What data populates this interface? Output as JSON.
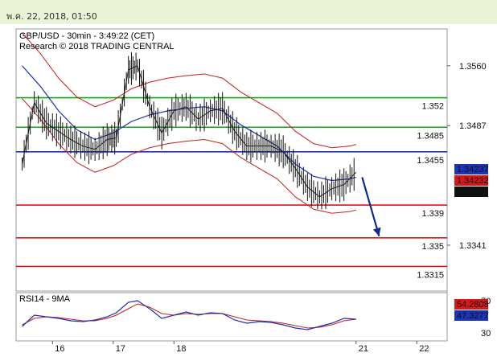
{
  "header": {
    "datestamp": "พ.ค. 22, 2018, 01:50"
  },
  "chart_data": {
    "type": "line",
    "title": "GBP/USD - 30min - 3:49:22 (CET)",
    "subtitle": "Research © 2018 TRADING CENTRAL",
    "x_ticks": [
      {
        "label": "16",
        "x": 16
      },
      {
        "label": "17",
        "x": 17
      },
      {
        "label": "18",
        "x": 18
      },
      {
        "label": "21",
        "x": 21
      },
      {
        "label": "22",
        "x": 22
      }
    ],
    "ylim": [
      1.3285,
      1.3605
    ],
    "y_ticks": [
      "1.3560",
      "1.3487",
      "1.3341"
    ],
    "levels": [
      {
        "label": "1.352",
        "value": 1.3521,
        "color": "#17a21a",
        "kind": "resistance"
      },
      {
        "label": "1.3485",
        "value": 1.3485,
        "color": "#17a21a",
        "kind": "resistance"
      },
      {
        "label": "1.3455",
        "value": 1.3455,
        "color": "#1b2fb0",
        "kind": "pivot"
      },
      {
        "label": "1.339",
        "value": 1.339,
        "color": "#d81818",
        "kind": "support"
      },
      {
        "label": "1.335",
        "value": 1.335,
        "color": "#d81818",
        "kind": "support"
      },
      {
        "label": "1.3315",
        "value": 1.3315,
        "color": "#d81818",
        "kind": "support"
      }
    ],
    "price_labels": [
      {
        "text": "1.34237",
        "bg": "#1b34b8"
      },
      {
        "text": "1.34232",
        "bg": "#d81818"
      },
      {
        "text": "1.3423",
        "bg": "#111111"
      }
    ],
    "series": [
      {
        "name": "GBP/USD",
        "x": [
          15.5,
          15.7,
          15.9,
          16.1,
          16.3,
          16.5,
          16.7,
          16.9,
          17.05,
          17.25,
          17.4,
          17.6,
          17.8,
          18,
          18.2,
          18.4,
          18.6,
          18.8,
          19,
          19.2,
          19.4,
          19.6,
          19.8,
          20,
          20.2,
          20.4,
          20.6,
          20.8,
          21
        ],
        "values": [
          1.344,
          1.3515,
          1.349,
          1.348,
          1.347,
          1.3462,
          1.3458,
          1.347,
          1.3472,
          1.3555,
          1.356,
          1.351,
          1.3478,
          1.3505,
          1.351,
          1.3495,
          1.3505,
          1.3508,
          1.348,
          1.3462,
          1.3462,
          1.3462,
          1.3455,
          1.3435,
          1.3412,
          1.34,
          1.341,
          1.3415,
          1.343
        ]
      },
      {
        "name": "MA",
        "x": [
          15.5,
          15.8,
          16.1,
          16.4,
          16.7,
          17.0,
          17.3,
          17.6,
          17.9,
          18.2,
          18.5,
          18.8,
          19.1,
          19.4,
          19.7,
          20.0,
          20.3,
          20.6,
          20.9,
          21.0
        ],
        "values": [
          1.356,
          1.3535,
          1.3505,
          1.3482,
          1.347,
          1.3478,
          1.3492,
          1.35,
          1.3505,
          1.3508,
          1.351,
          1.3505,
          1.3488,
          1.3475,
          1.3462,
          1.344,
          1.3425,
          1.342,
          1.3422,
          1.3424
        ]
      }
    ],
    "forecast_arrow": {
      "x_from": 21.1,
      "y_from": 1.3424,
      "x_to": 21.38,
      "y_to": 1.3352,
      "color": "#0f2a8a"
    },
    "rsi": {
      "label": "RSI14 - 9MA",
      "ylim": [
        20,
        80
      ],
      "ticks": [
        "70",
        "30"
      ],
      "values_labels": [
        {
          "text": "54.2808",
          "bg": "#d81818"
        },
        {
          "text": "47.3277",
          "bg": "#1b34b8"
        }
      ],
      "x": [
        15.5,
        15.7,
        15.9,
        16.1,
        16.3,
        16.5,
        16.7,
        16.9,
        17.05,
        17.25,
        17.4,
        17.6,
        17.8,
        18,
        18.2,
        18.4,
        18.6,
        18.8,
        19,
        19.2,
        19.4,
        19.6,
        19.8,
        20,
        20.2,
        20.4,
        20.6,
        20.8,
        21
      ],
      "values": [
        38,
        52,
        50,
        48,
        45,
        44,
        46,
        50,
        55,
        68,
        70,
        60,
        48,
        52,
        56,
        52,
        55,
        54,
        46,
        42,
        44,
        43,
        40,
        36,
        34,
        38,
        42,
        48,
        47
      ],
      "ma": [
        40,
        48,
        50,
        49,
        47,
        45,
        45,
        48,
        52,
        60,
        66,
        62,
        54,
        52,
        54,
        53,
        54,
        54,
        50,
        46,
        45,
        44,
        42,
        39,
        36,
        37,
        40,
        45,
        47
      ]
    }
  }
}
